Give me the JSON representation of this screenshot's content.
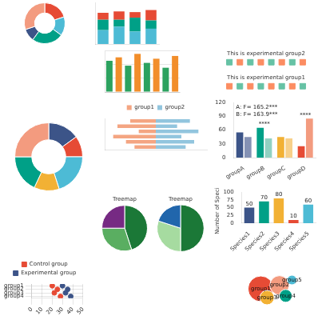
{
  "chart_data": [
    {
      "type": "doughnut",
      "values": [
        20,
        15,
        25,
        10,
        30
      ],
      "colors": [
        "#e64b35",
        "#4dbbd5",
        "#00a087",
        "#3c5488",
        "#f39b7f"
      ]
    },
    {
      "type": "bar",
      "stacked": true,
      "categories": [
        null,
        null,
        null,
        null
      ],
      "series": [
        {
          "color": "#4dbbd5",
          "values": [
            20,
            25,
            18,
            22
          ]
        },
        {
          "color": "#00a087",
          "values": [
            15,
            10,
            20,
            12
          ]
        },
        {
          "color": "#e64b35",
          "values": [
            10,
            12,
            8,
            15
          ]
        }
      ],
      "ylim": [
        0,
        60
      ],
      "yticks": [
        0,
        20,
        40,
        60
      ],
      "tick_labels": false,
      "grid": false
    },
    {
      "type": "bar",
      "categories": [
        null,
        null,
        null,
        null,
        null,
        null,
        null,
        null
      ],
      "values": [
        45,
        50,
        38,
        55,
        42,
        48,
        35,
        52
      ],
      "colors": [
        "#2ca25f",
        "#f28e2b",
        "#2ca25f",
        "#f28e2b",
        "#2ca25f",
        "#f28e2b",
        "#2ca25f",
        "#f28e2b"
      ],
      "ylim": [
        0,
        60
      ],
      "yticks": [
        0,
        20,
        40,
        60
      ],
      "tick_labels": false,
      "grid": true
    },
    {
      "type": "scatter",
      "title": "This is experimental group2",
      "x": [
        1,
        2,
        3,
        4,
        5,
        6,
        7,
        8
      ],
      "values": [
        1,
        1,
        1,
        1,
        1,
        1,
        1,
        1
      ],
      "colors": [
        "#66c2a5",
        "#fc8d62",
        "#66c2a5",
        "#fc8d62",
        "#66c2a5",
        "#fc8d62",
        "#66c2a5",
        "#fc8d62"
      ],
      "marker": "square",
      "xlim": [
        0,
        9
      ],
      "xticks": [
        0,
        9
      ],
      "ylim": [
        0,
        2
      ],
      "yticks": [
        0,
        2
      ],
      "tick_labels": false,
      "grid": false
    },
    {
      "type": "scatter",
      "title": "This is experimental group1",
      "x": [
        1,
        2,
        3,
        4,
        5,
        6,
        7,
        8
      ],
      "values": [
        1,
        1,
        1,
        1,
        1,
        1,
        1,
        1
      ],
      "colors": [
        "#fc8d62",
        "#66c2a5",
        "#fc8d62",
        "#66c2a5",
        "#fc8d62",
        "#66c2a5",
        "#fc8d62",
        "#66c2a5"
      ],
      "marker": "square",
      "xlim": [
        0,
        9
      ],
      "xticks": [
        0,
        9
      ],
      "ylim": [
        0,
        2
      ],
      "yticks": [
        0,
        2
      ],
      "tick_labels": false,
      "grid": false
    },
    {
      "type": "bar",
      "orientation": "horizontal",
      "stacked": true,
      "categories": [
        null,
        null,
        null,
        null,
        null,
        null
      ],
      "series": [
        {
          "name": "group1",
          "color": "#f4a582",
          "values": [
            -30,
            -45,
            -20,
            -50,
            -35,
            -25
          ]
        },
        {
          "name": "group2",
          "color": "#92c5de",
          "values": [
            40,
            25,
            50,
            30,
            45,
            35
          ]
        }
      ],
      "xlim": [
        -60,
        60
      ],
      "xticks": [
        -60,
        -30,
        0,
        30,
        60
      ],
      "legend": "top",
      "tick_labels": false,
      "grid": false
    },
    {
      "type": "bar",
      "categories": [
        "groupA",
        "groupB",
        "groupC",
        "groupD"
      ],
      "series": [
        {
          "colors": [
            "#3c5488",
            "#00a087",
            "#f2b134",
            "#e64b35"
          ],
          "values": [
            55,
            65,
            45,
            25
          ]
        },
        {
          "colors": [
            "#8491b4",
            "#91d1c2",
            "#f7d08a",
            "#f39b7f"
          ],
          "values": [
            45,
            42,
            42,
            85
          ]
        }
      ],
      "ylim": [
        0,
        120
      ],
      "yticks": [
        0,
        30,
        60,
        90,
        120
      ],
      "grid": false,
      "annotations": [
        {
          "text": "A: F= 165.2***"
        },
        {
          "text": "B: F= 163.9***"
        },
        {
          "category": "groupB",
          "text": "****"
        },
        {
          "category": "groupD",
          "text": "****"
        }
      ]
    },
    {
      "type": "doughnut",
      "values": [
        15,
        10,
        20,
        12,
        18,
        25
      ],
      "colors": [
        "#3c5488",
        "#e64b35",
        "#4dbbd5",
        "#f2b134",
        "#00a087",
        "#f39b7f"
      ]
    },
    {
      "type": "pie",
      "title": "Treemap",
      "values": [
        45,
        30,
        25
      ],
      "colors": [
        "#1b7837",
        "#5aae61",
        "#762a83"
      ]
    },
    {
      "type": "pie",
      "title": "Treemap",
      "values": [
        50,
        30,
        20
      ],
      "colors": [
        "#1b7837",
        "#a6dba0",
        "#2166ac"
      ]
    },
    {
      "type": "bar",
      "y_label": "Number of Species",
      "categories": [
        "Species1",
        "Species2",
        "Species3",
        "Species4",
        "Species5"
      ],
      "values": [
        50,
        70,
        80,
        10,
        60
      ],
      "colors": [
        "#3c5488",
        "#00a087",
        "#f2b134",
        "#e64b35",
        "#4dbbd5"
      ],
      "ylim": [
        0,
        100
      ],
      "yticks": [
        0,
        25,
        50,
        75,
        100
      ],
      "data_labels": true,
      "grid": false
    },
    {
      "type": "scatter",
      "orientation": "horizontal",
      "categories": [
        "group1",
        "group2",
        "group3",
        "group4"
      ],
      "series": [
        {
          "name": "Control group",
          "color": "#e64b35",
          "values": [
            20,
            25,
            22,
            28
          ]
        },
        {
          "name": "Experimental group",
          "color": "#3c5488",
          "values": [
            30,
            35,
            33,
            38
          ]
        }
      ],
      "xlim": [
        0,
        50
      ],
      "xticks": [
        0,
        10,
        20,
        30,
        40,
        50
      ],
      "legend": "top",
      "grid": true
    },
    {
      "type": "bubble",
      "categories": [
        "group1",
        "group2",
        "group3",
        "group4",
        "group5"
      ],
      "x": [
        3,
        6,
        4,
        7,
        8
      ],
      "values": [
        5,
        6,
        2.5,
        3,
        7.5
      ],
      "sizes": [
        16,
        12,
        9,
        8,
        6
      ],
      "colors": [
        "#e64b35",
        "#f39b7f",
        "#f2b134",
        "#00a087",
        "#4dbbd5"
      ],
      "xlim": [
        0,
        10
      ],
      "xticks": [
        0,
        10
      ],
      "ylim": [
        0,
        10
      ],
      "yticks": [
        0,
        10
      ],
      "tick_labels": false,
      "grid": false
    }
  ]
}
